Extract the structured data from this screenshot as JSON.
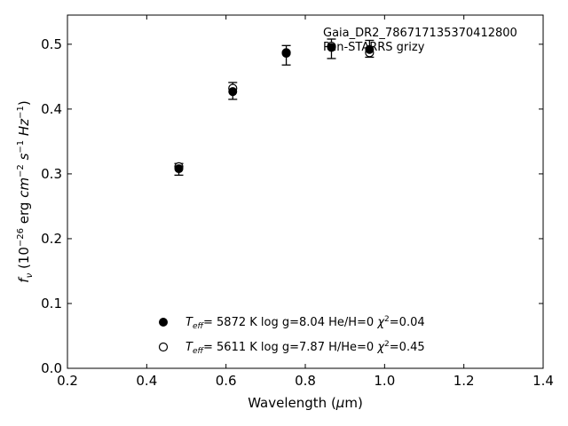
{
  "chart_data": {
    "type": "scatter",
    "xlabel": "Wavelength (μm)",
    "ylabel": "f_ν (10^-26 erg cm^-2 s^-1 Hz^-1)",
    "xlim": [
      0.2,
      1.4
    ],
    "ylim": [
      0.0,
      0.545
    ],
    "xticks": [
      0.2,
      0.4,
      0.6,
      0.8,
      1.0,
      1.2,
      1.4
    ],
    "xtick_labels": [
      "0.2",
      "0.4",
      "0.6",
      "0.8",
      "1.0",
      "1.2",
      "1.4"
    ],
    "yticks": [
      0.0,
      0.1,
      0.2,
      0.3,
      0.4,
      0.5
    ],
    "ytick_labels": [
      "0.0",
      "0.1",
      "0.2",
      "0.3",
      "0.4",
      "0.5"
    ],
    "grid": false,
    "annotation": [
      "Gaia_DR2_786717135370412800",
      "Pan-STARRS grizy"
    ],
    "observed": {
      "x": [
        0.481,
        0.617,
        0.752,
        0.866,
        0.962
      ],
      "y": [
        0.307,
        0.428,
        0.483,
        0.493,
        0.493
      ],
      "err": [
        0.009,
        0.013,
        0.015,
        0.015,
        0.013
      ]
    },
    "series": [
      {
        "name": "T_eff= 5872 K log g=8.04 He/H=0 χ²=0.04",
        "marker": "filled",
        "legend": {
          "teff": "5872 K",
          "logg": "log g=8.04",
          "comp": "He/H=0",
          "chi2": "=0.04"
        },
        "x": [
          0.481,
          0.617,
          0.752,
          0.866,
          0.962
        ],
        "y": [
          0.308,
          0.427,
          0.486,
          0.495,
          0.492
        ]
      },
      {
        "name": "T_eff= 5611 K log g=7.87 H/He=0 χ²=0.45",
        "marker": "open",
        "legend": {
          "teff": "5611 K",
          "logg": "log g=7.87",
          "comp": "H/He=0",
          "chi2": "=0.45"
        },
        "x": [
          0.481,
          0.617,
          0.752,
          0.866,
          0.962
        ],
        "y": [
          0.311,
          0.432,
          0.487,
          0.497,
          0.487
        ]
      }
    ]
  }
}
